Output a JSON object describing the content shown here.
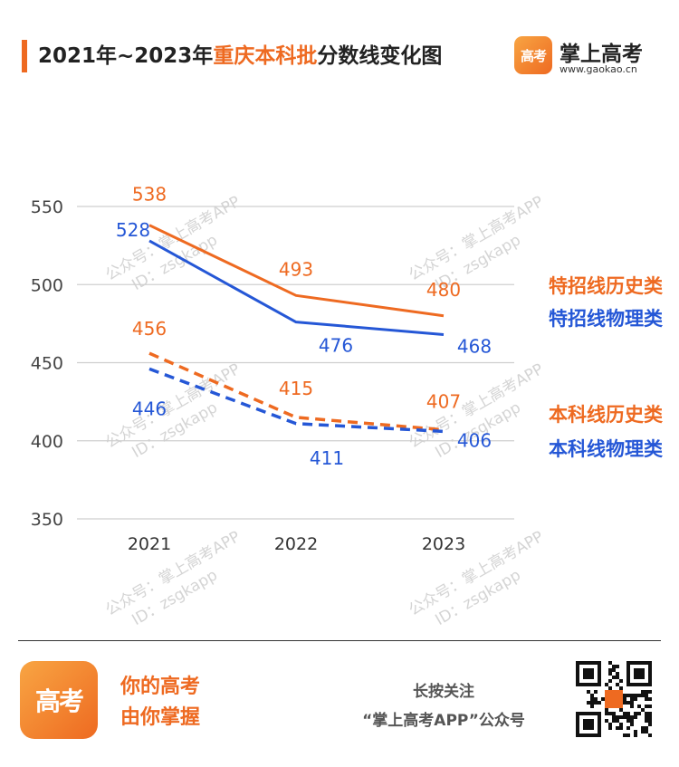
{
  "header": {
    "title_pre": "2021年~2023年",
    "title_hl": "重庆本科批",
    "title_post": "分数线变化图",
    "brand_logo_text": "高考",
    "brand_name": "掌上高考",
    "brand_url": "www.gaokao.cn"
  },
  "watermark": {
    "line1": "公众号：掌上高考APP",
    "line2": "ID：zsgkapp"
  },
  "colors": {
    "history": "#ee6a21",
    "physics": "#2557d6",
    "axis_label": "#444444",
    "grid": "#cfcfcf",
    "watermark": "#d4d4d4"
  },
  "chart_data": {
    "type": "line",
    "title": "2021年~2023年重庆本科批分数线变化图",
    "x": [
      "2021",
      "2022",
      "2023"
    ],
    "ylim": [
      350,
      550
    ],
    "yticks": [
      350,
      400,
      450,
      500,
      550
    ],
    "grid": "horizontal",
    "legend_placement": "right",
    "series": [
      {
        "name": "特招线历史类",
        "values": [
          538,
          493,
          480
        ],
        "color": "#ee6a21",
        "dash": false
      },
      {
        "name": "特招线物理类",
        "values": [
          528,
          476,
          468
        ],
        "color": "#2557d6",
        "dash": false
      },
      {
        "name": "本科线历史类",
        "values": [
          456,
          415,
          407
        ],
        "color": "#ee6a21",
        "dash": true
      },
      {
        "name": "本科线物理类",
        "values": [
          446,
          411,
          406
        ],
        "color": "#2557d6",
        "dash": true
      }
    ]
  },
  "footer": {
    "logo_text": "高考",
    "slogan_line1": "你的高考",
    "slogan_line2": "由你掌握",
    "follow_line1": "长按关注",
    "follow_line2": "“掌上高考APP”公众号"
  }
}
